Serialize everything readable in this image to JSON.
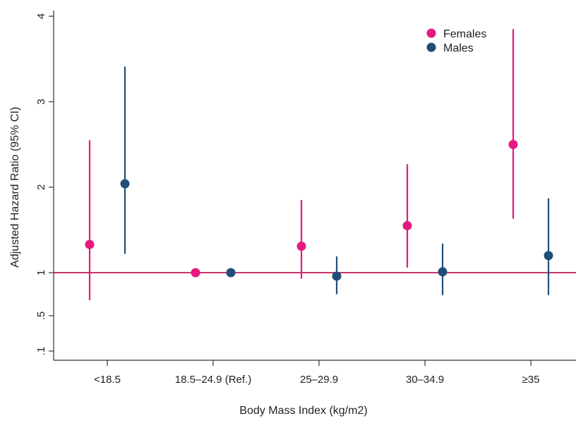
{
  "chart_data": {
    "type": "scatter",
    "title": "",
    "xlabel": "Body Mass Index (kg/m2)",
    "ylabel": "Adjusted Hazard Ratio (95% CI)",
    "categories": [
      "<18.5",
      "18.5–24.9 (Ref.)",
      "25–29.9",
      "30–34.9",
      "≥35"
    ],
    "y_ticks": [
      {
        "value": 0.1,
        "label": ".1"
      },
      {
        "value": 0.5,
        "label": ".5"
      },
      {
        "value": 1,
        "label": "1"
      },
      {
        "value": 2,
        "label": "2"
      },
      {
        "value": 3,
        "label": "3"
      },
      {
        "value": 4,
        "label": "4"
      }
    ],
    "ylim": [
      -0.05,
      4.05
    ],
    "reference_line": {
      "value": 1,
      "color": "#c2185b"
    },
    "grid": false,
    "legend_position": "top-right",
    "series": [
      {
        "name": "Females",
        "color": "#e6197f",
        "estimates": [
          1.33,
          1.0,
          1.31,
          1.55,
          2.5
        ],
        "ci_low": [
          0.68,
          null,
          0.93,
          1.06,
          1.63
        ],
        "ci_high": [
          2.55,
          null,
          1.85,
          2.27,
          3.85
        ]
      },
      {
        "name": "Males",
        "color": "#1f4e79",
        "estimates": [
          2.04,
          1.0,
          0.96,
          1.01,
          1.2
        ],
        "ci_low": [
          1.22,
          null,
          0.75,
          0.74,
          0.74
        ],
        "ci_high": [
          3.41,
          null,
          1.19,
          1.34,
          1.87
        ]
      }
    ]
  }
}
